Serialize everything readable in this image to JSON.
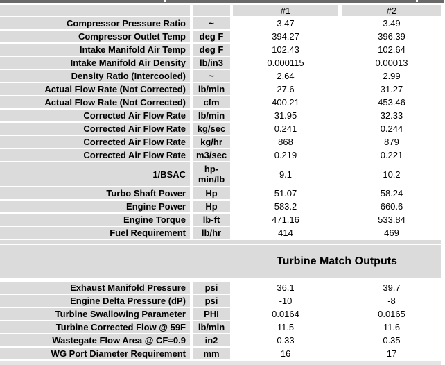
{
  "columns": {
    "col1_header": "#1",
    "col2_header": "#2"
  },
  "turbine_section": {
    "title": "Turbine Match Outputs"
  },
  "rows_main": [
    {
      "label": "Compressor Pressure Ratio",
      "unit": "~",
      "v1": "3.47",
      "v2": "3.49"
    },
    {
      "label": "Compressor Outlet Temp",
      "unit": "deg F",
      "v1": "394.27",
      "v2": "396.39"
    },
    {
      "label": "Intake Manifold Air Temp",
      "unit": "deg F",
      "v1": "102.43",
      "v2": "102.64"
    },
    {
      "label": "Intake Manifold Air Density",
      "unit": "lb/in3",
      "v1": "0.000115",
      "v2": "0.00013"
    },
    {
      "label": "Density Ratio (Intercooled)",
      "unit": "~",
      "v1": "2.64",
      "v2": "2.99"
    },
    {
      "label": "Actual Flow Rate (Not Corrected)",
      "unit": "lb/min",
      "v1": "27.6",
      "v2": "31.27"
    },
    {
      "label": "Actual Flow Rate (Not Corrected)",
      "unit": "cfm",
      "v1": "400.21",
      "v2": "453.46"
    },
    {
      "label": "Corrected Air Flow Rate",
      "unit": "lb/min",
      "v1": "31.95",
      "v2": "32.33"
    },
    {
      "label": "Corrected Air Flow Rate",
      "unit": "kg/sec",
      "v1": "0.241",
      "v2": "0.244"
    },
    {
      "label": "Corrected Air Flow Rate",
      "unit": "kg/hr",
      "v1": "868",
      "v2": "879"
    },
    {
      "label": "Corrected Air Flow Rate",
      "unit": "m3/sec",
      "v1": "0.219",
      "v2": "0.221"
    },
    {
      "label": "1/BSAC",
      "unit": [
        "hp-",
        "min/lb"
      ],
      "tall": true,
      "v1": "9.1",
      "v2": "10.2"
    },
    {
      "label": "Turbo Shaft Power",
      "unit": "Hp",
      "v1": "51.07",
      "v2": "58.24"
    },
    {
      "label": "Engine Power",
      "unit": "Hp",
      "v1": "583.2",
      "v2": "660.6"
    },
    {
      "label": "Engine Torque",
      "unit": "lb-ft",
      "v1": "471.16",
      "v2": "533.84"
    },
    {
      "label": "Fuel Requirement",
      "unit": "lb/hr",
      "v1": "414",
      "v2": "469"
    }
  ],
  "rows_turbine": [
    {
      "label": "Exhaust Manifold Pressure",
      "unit": "psi",
      "v1": "36.1",
      "v2": "39.7"
    },
    {
      "label": "Engine Delta Pressure (dP)",
      "unit": "psi",
      "v1": "-10",
      "v2": "-8"
    },
    {
      "label": "Turbine Swallowing Parameter",
      "unit": "PHI",
      "v1": "0.0164",
      "v2": "0.0165"
    },
    {
      "label": "Turbine Corrected Flow @ 59F",
      "unit": "lb/min",
      "v1": "11.5",
      "v2": "11.6"
    },
    {
      "label": "Wastegate Flow Area @ CF=0.9",
      "unit": "in2",
      "v1": "0.33",
      "v2": "0.35"
    },
    {
      "label": "WG Port Diameter Requirement",
      "unit": "mm",
      "v1": "16",
      "v2": "17"
    }
  ],
  "colors": {
    "cell_gray": "#DBDBDB",
    "top_bar": "#696969",
    "value_background": "#FFFFFF",
    "text": "#000000",
    "bottom_strip": "#E4E4E4"
  }
}
